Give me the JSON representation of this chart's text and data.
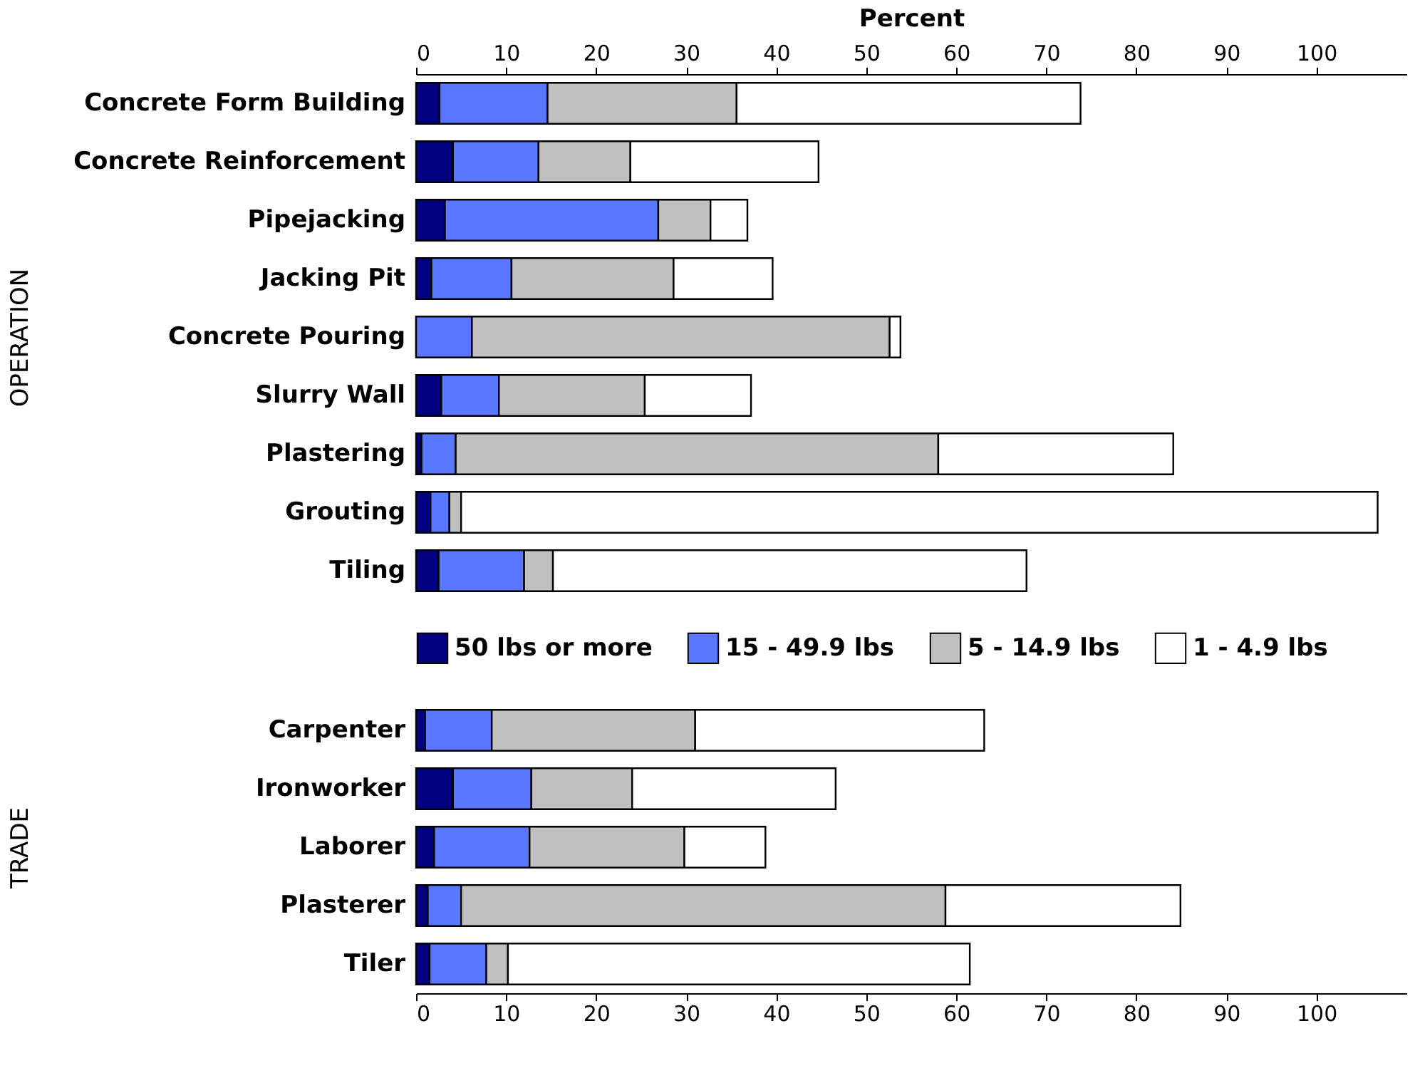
{
  "chart_data": [
    {
      "type": "bar",
      "orientation": "horizontal",
      "stacked": true,
      "xlabel": "Percent",
      "ylabel": "OPERATION",
      "legend": "bottom",
      "categories": [
        "Concrete Form Building",
        "Concrete Reinforcement",
        "Pipejacking",
        "Jacking Pit",
        "Concrete Pouring",
        "Slurry Wall",
        "Plastering",
        "Grouting",
        "Tiling"
      ],
      "series": [
        {
          "name": "50 lbs or more",
          "color": "#000080",
          "values": [
            2.6,
            4.1,
            3.2,
            1.7,
            0,
            2.8,
            0.6,
            1.6,
            2.5
          ]
        },
        {
          "name": "15 - 49.9 lbs",
          "color": "#5a78ff",
          "values": [
            12.0,
            9.5,
            23.7,
            8.9,
            6.2,
            6.4,
            3.8,
            2.1,
            9.5
          ]
        },
        {
          "name": "5 - 14.9 lbs",
          "color": "#c0c0c0",
          "values": [
            21.0,
            10.2,
            5.8,
            18.0,
            46.4,
            16.2,
            53.6,
            1.3,
            3.2
          ]
        },
        {
          "name": "1 - 4.9 lbs",
          "color": "#ffffff",
          "values": [
            38.2,
            20.9,
            4.1,
            11.0,
            1.2,
            11.8,
            26.1,
            101.8,
            52.6
          ]
        }
      ],
      "xlim": [
        0,
        110
      ],
      "xticks": [
        0,
        10,
        20,
        30,
        40,
        50,
        60,
        70,
        80,
        90,
        100
      ]
    },
    {
      "type": "bar",
      "orientation": "horizontal",
      "stacked": true,
      "ylabel": "TRADE",
      "categories": [
        "Carpenter",
        "Ironworker",
        "Laborer",
        "Plasterer",
        "Tiler"
      ],
      "series": [
        {
          "color": "#000080",
          "values": [
            1.0,
            4.1,
            2.0,
            1.3,
            1.5
          ]
        },
        {
          "color": "#5a78ff",
          "values": [
            7.4,
            8.7,
            10.6,
            3.7,
            6.3
          ]
        },
        {
          "color": "#c0c0c0",
          "values": [
            22.6,
            11.2,
            17.2,
            53.8,
            2.4
          ]
        },
        {
          "color": "#ffffff",
          "values": [
            32.1,
            22.6,
            9.0,
            26.1,
            51.3
          ]
        }
      ],
      "xlim": [
        0,
        110
      ],
      "xticks": [
        0,
        10,
        20,
        30,
        40,
        50,
        60,
        70,
        80,
        90,
        100
      ]
    }
  ]
}
